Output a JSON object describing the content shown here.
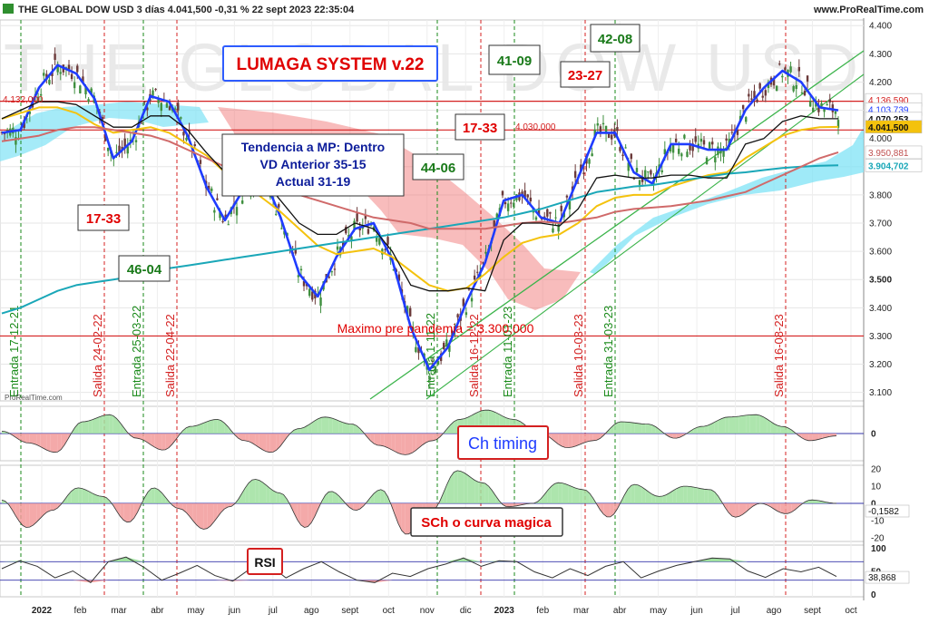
{
  "header": {
    "title": "THE GLOBAL DOW USD 3 días 4.041,500 -0,31 % 22 sept 2023 22:35:04",
    "brand": "www.ProRealTime.com",
    "watermark": "THE GLOBAL DOW USD",
    "logo_small": "ProRealTime.com"
  },
  "boxes": {
    "system": "LUMAGA SYSTEM v.22",
    "trend": [
      "Tendencia a MP: Dentro",
      "VD Anterior 35-15",
      "Actual 31-19"
    ],
    "scores": [
      "17-33",
      "46-04",
      "44-06",
      "41-09",
      "17-33",
      "23-27",
      "42-08"
    ],
    "pandemic": "Maximo pre pandemia = 3.300,000",
    "level_a": "4.132,000",
    "level_b": "4.030,000",
    "ch_timing": "Ch timing",
    "sch": "SCh o curva magica",
    "rsi": "RSI"
  },
  "signals": [
    {
      "label": "Entrada 17-12-21",
      "kind": "entrada"
    },
    {
      "label": "Salida 24-02-22",
      "kind": "salida"
    },
    {
      "label": "Entrada 25-03-22",
      "kind": "entrada"
    },
    {
      "label": "Salida 22-04-22",
      "kind": "salida"
    },
    {
      "label": "Entrada 1-11-22",
      "kind": "entrada"
    },
    {
      "label": "Salida 16-12-22",
      "kind": "salida"
    },
    {
      "label": "Entrada 11-01-23",
      "kind": "entrada"
    },
    {
      "label": "Salida 10-03-23",
      "kind": "salida"
    },
    {
      "label": "Entrada 31-03-23",
      "kind": "entrada"
    },
    {
      "label": "Salida 16-08-23",
      "kind": "salida"
    }
  ],
  "chart_data": [
    {
      "type": "line",
      "title": "THE GLOBAL DOW USD 3 días",
      "x_labels": [
        "2022",
        "feb",
        "mar",
        "abr",
        "may",
        "jun",
        "jul",
        "ago",
        "sept",
        "oct",
        "nov",
        "dic",
        "2023",
        "feb",
        "mar",
        "abr",
        "may",
        "jun",
        "jul",
        "ago",
        "sept",
        "oct"
      ],
      "y_ticks": [
        "4.400",
        "4.300",
        "4.200",
        "4.100",
        "4.000",
        "3.900",
        "3.800",
        "3.700",
        "3.600",
        "3.500",
        "3.400",
        "3.300",
        "3.200",
        "3.100"
      ],
      "ylim": [
        3070,
        4420
      ],
      "last_price": 4041.5,
      "price_labels": [
        {
          "value": 4136.59,
          "text": "4.136,590",
          "color": "#d42020",
          "bold": false
        },
        {
          "value": 4103.739,
          "text": "4.103,739",
          "color": "#1f3cff",
          "bold": false
        },
        {
          "value": 4070.253,
          "text": "4.070,253",
          "color": "#111111",
          "bold": true
        },
        {
          "value": 4041.5,
          "text": "4.041,500",
          "color": "#111111",
          "bold": true,
          "fill": "#f4c20d"
        },
        {
          "value": 3950.881,
          "text": "3.950,881",
          "color": "#c05050",
          "bold": false
        },
        {
          "value": 3904.702,
          "text": "3.904,702",
          "color": "#1aa7b8",
          "bold": true
        }
      ],
      "horizontal_levels": [
        4132,
        4030,
        3300
      ],
      "series": [
        {
          "name": "",
          "color": "#1f3cff",
          "values": [
            4020,
            4030,
            4180,
            4260,
            4230,
            4140,
            3930,
            3990,
            4150,
            4130,
            4010,
            3830,
            3710,
            3820,
            3880,
            3720,
            3520,
            3440,
            3580,
            3680,
            3700,
            3570,
            3330,
            3180,
            3260,
            3420,
            3560,
            3780,
            3800,
            3720,
            3700,
            3860,
            4020,
            4020,
            3880,
            3840,
            3980,
            3980,
            3960,
            3960,
            4100,
            4180,
            4240,
            4200,
            4110,
            4100
          ]
        },
        {
          "name": "",
          "color": "#f4c20d",
          "values": [
            4070,
            4090,
            4110,
            4110,
            4090,
            4050,
            4020,
            4030,
            4040,
            4020,
            3980,
            3940,
            3880,
            3840,
            3790,
            3740,
            3680,
            3620,
            3590,
            3600,
            3610,
            3580,
            3530,
            3480,
            3460,
            3470,
            3520,
            3580,
            3630,
            3650,
            3660,
            3700,
            3760,
            3790,
            3800,
            3800,
            3830,
            3850,
            3870,
            3880,
            3930,
            3970,
            4010,
            4030,
            4040,
            4041
          ]
        },
        {
          "name": "",
          "color": "#1aa7b8",
          "values": [
            3380,
            3400,
            3430,
            3460,
            3480,
            3490,
            3500,
            3510,
            3520,
            3540,
            3550,
            3560,
            3570,
            3580,
            3590,
            3600,
            3610,
            3620,
            3630,
            3640,
            3650,
            3660,
            3670,
            3680,
            3690,
            3700,
            3710,
            3720,
            3735,
            3750,
            3770,
            3790,
            3810,
            3820,
            3830,
            3835,
            3845,
            3855,
            3865,
            3875,
            3880,
            3888,
            3895,
            3900,
            3903,
            3905
          ]
        },
        {
          "name": "",
          "color": "#d06a6a",
          "values": [
            3990,
            4000,
            4010,
            4030,
            4040,
            4040,
            4030,
            4020,
            4010,
            3990,
            3960,
            3930,
            3900,
            3880,
            3850,
            3820,
            3800,
            3780,
            3760,
            3740,
            3720,
            3710,
            3700,
            3680,
            3680,
            3680,
            3680,
            3690,
            3700,
            3705,
            3700,
            3710,
            3720,
            3740,
            3750,
            3755,
            3760,
            3770,
            3780,
            3795,
            3810,
            3840,
            3870,
            3900,
            3930,
            3951
          ]
        },
        {
          "name": "",
          "color": "#111111",
          "values": [
            4070,
            4100,
            4130,
            4130,
            4120,
            4080,
            4040,
            4040,
            4080,
            4080,
            4030,
            3950,
            3880,
            3870,
            3860,
            3780,
            3700,
            3660,
            3660,
            3700,
            3680,
            3600,
            3480,
            3460,
            3460,
            3470,
            3460,
            3640,
            3700,
            3700,
            3690,
            3750,
            3860,
            3870,
            3860,
            3860,
            3870,
            3870,
            3860,
            3860,
            3980,
            4000,
            4060,
            4080,
            4070,
            4070
          ]
        }
      ]
    },
    {
      "type": "area",
      "title": "Ch timing",
      "y_ticks": [
        "0"
      ],
      "ylim": [
        -1,
        1
      ],
      "values": [
        0.1,
        -0.4,
        -0.8,
        0.5,
        0.8,
        -0.2,
        -0.7,
        0.3,
        0.6,
        -0.3,
        -0.8,
        0.2,
        0.7,
        0.4,
        -0.5,
        -0.9,
        -0.3,
        0.6,
        1.0,
        0.6,
        0.0,
        -0.6,
        -0.3,
        0.5,
        0.4,
        -0.2,
        0.3,
        0.7,
        0.8,
        0.3,
        -0.3,
        -0.1
      ]
    },
    {
      "type": "area",
      "title": "SCh o curva magica",
      "y_ticks": [
        "20",
        "10",
        "0",
        "-10",
        "-20"
      ],
      "ylim": [
        -20,
        20
      ],
      "last_value": "-0,1582",
      "values": [
        2,
        -14,
        -4,
        9,
        4,
        -11,
        9,
        -3,
        -15,
        -2,
        14,
        6,
        -14,
        7,
        -4,
        8,
        -18,
        -4,
        19,
        12,
        -2,
        0,
        12,
        8,
        -8,
        11,
        4,
        10,
        8,
        -8,
        0,
        -6,
        2,
        0
      ]
    },
    {
      "type": "line",
      "title": "RSI",
      "y_ticks": [
        "100",
        "50",
        "0"
      ],
      "ylim": [
        0,
        100
      ],
      "levels": [
        70,
        30
      ],
      "last_value": "38,868",
      "values": [
        55,
        72,
        60,
        35,
        50,
        25,
        70,
        80,
        58,
        30,
        45,
        62,
        40,
        28,
        55,
        65,
        35,
        55,
        70,
        48,
        30,
        25,
        45,
        38,
        55,
        65,
        78,
        60,
        72,
        70,
        48,
        35,
        55,
        40,
        60,
        70,
        35,
        50,
        62,
        70,
        78,
        76,
        50,
        36,
        55,
        48,
        58,
        38
      ]
    }
  ]
}
